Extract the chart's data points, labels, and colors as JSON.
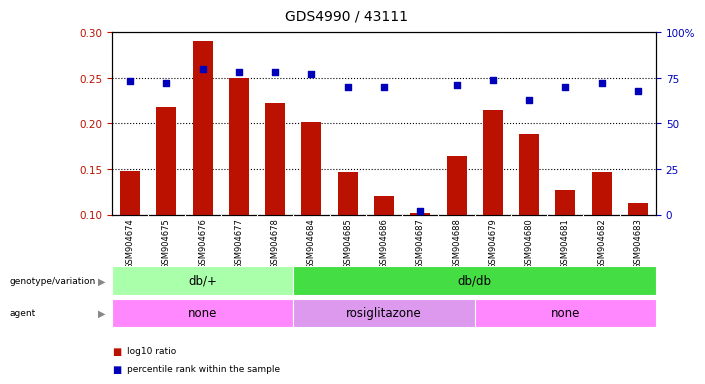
{
  "title": "GDS4990 / 43111",
  "samples": [
    "GSM904674",
    "GSM904675",
    "GSM904676",
    "GSM904677",
    "GSM904678",
    "GSM904684",
    "GSM904685",
    "GSM904686",
    "GSM904687",
    "GSM904688",
    "GSM904679",
    "GSM904680",
    "GSM904681",
    "GSM904682",
    "GSM904683"
  ],
  "log10_ratio": [
    0.148,
    0.218,
    0.29,
    0.25,
    0.222,
    0.202,
    0.147,
    0.12,
    0.102,
    0.164,
    0.215,
    0.188,
    0.127,
    0.147,
    0.113
  ],
  "percentile_rank": [
    73,
    72,
    80,
    78,
    78,
    77,
    70,
    70,
    2,
    71,
    74,
    63,
    70,
    72,
    68
  ],
  "ylim_left": [
    0.1,
    0.3
  ],
  "ylim_right": [
    0,
    100
  ],
  "yticks_left": [
    0.1,
    0.15,
    0.2,
    0.25,
    0.3
  ],
  "yticks_right": [
    0,
    25,
    50,
    75,
    100
  ],
  "ytick_right_labels": [
    "0",
    "25",
    "50",
    "75",
    "100%"
  ],
  "bar_color": "#bb1100",
  "dot_color": "#0000bb",
  "bg_color": "#ffffff",
  "xtick_bg": "#cccccc",
  "genotype_groups": [
    {
      "label": "db/+",
      "start": 0,
      "end": 5,
      "color": "#aaffaa"
    },
    {
      "label": "db/db",
      "start": 5,
      "end": 15,
      "color": "#44dd44"
    }
  ],
  "agent_groups": [
    {
      "label": "none",
      "start": 0,
      "end": 5,
      "color": "#ff88ff"
    },
    {
      "label": "rosiglitazone",
      "start": 5,
      "end": 10,
      "color": "#dd99ee"
    },
    {
      "label": "none",
      "start": 10,
      "end": 15,
      "color": "#ff88ff"
    }
  ],
  "legend_red": "log10 ratio",
  "legend_blue": "percentile rank within the sample"
}
